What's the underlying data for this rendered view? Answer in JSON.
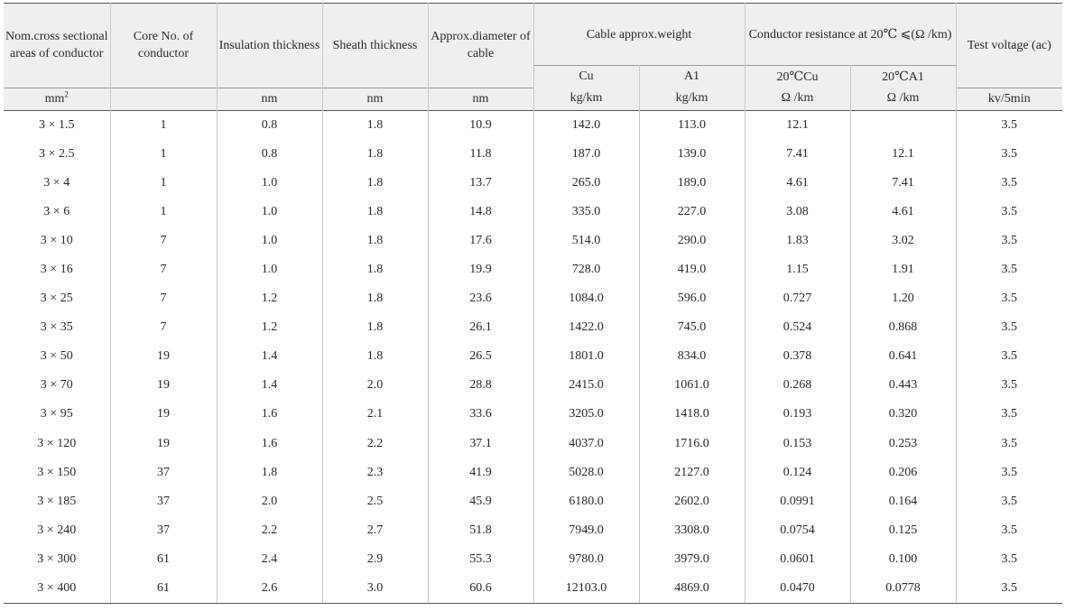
{
  "headers": {
    "area": "Nom.cross sectional areas of conductor",
    "cores": "Core No. of conductor",
    "insulation": "Insulation thickness",
    "sheath": "Sheath thickness",
    "diameter": "Approx.diameter of cable",
    "weight": "Cable approx.weight",
    "weight_cu": "Cu",
    "weight_al": "A1",
    "resistance": "Conductor resistance at 20℃ ⩽(Ω /km)",
    "res_cu": "20℃Cu",
    "res_al": "20℃A1",
    "voltage": "Test voltage (ac)"
  },
  "units": {
    "area": "mm",
    "area_sup": "2",
    "cores": "",
    "insulation": "nm",
    "sheath": "nm",
    "diameter": "nm",
    "weight_cu": "kg/km",
    "weight_al": "kg/km",
    "res_cu": "Ω /km",
    "res_al": "Ω /km",
    "voltage": "kv/5min"
  },
  "rows": [
    [
      "3 × 1.5",
      "1",
      "0.8",
      "1.8",
      "10.9",
      "142.0",
      "113.0",
      "12.1",
      "",
      "3.5"
    ],
    [
      "3 × 2.5",
      "1",
      "0.8",
      "1.8",
      "11.8",
      "187.0",
      "139.0",
      "7.41",
      "12.1",
      "3.5"
    ],
    [
      "3 × 4",
      "1",
      "1.0",
      "1.8",
      "13.7",
      "265.0",
      "189.0",
      "4.61",
      "7.41",
      "3.5"
    ],
    [
      "3 × 6",
      "1",
      "1.0",
      "1.8",
      "14.8",
      "335.0",
      "227.0",
      "3.08",
      "4.61",
      "3.5"
    ],
    [
      "3 × 10",
      "7",
      "1.0",
      "1.8",
      "17.6",
      "514.0",
      "290.0",
      "1.83",
      "3.02",
      "3.5"
    ],
    [
      "3 × 16",
      "7",
      "1.0",
      "1.8",
      "19.9",
      "728.0",
      "419.0",
      "1.15",
      "1.91",
      "3.5"
    ],
    [
      "3 × 25",
      "7",
      "1.2",
      "1.8",
      "23.6",
      "1084.0",
      "596.0",
      "0.727",
      "1.20",
      "3.5"
    ],
    [
      "3 × 35",
      "7",
      "1.2",
      "1.8",
      "26.1",
      "1422.0",
      "745.0",
      "0.524",
      "0.868",
      "3.5"
    ],
    [
      "3 × 50",
      "19",
      "1.4",
      "1.8",
      "26.5",
      "1801.0",
      "834.0",
      "0.378",
      "0.641",
      "3.5"
    ],
    [
      "3 × 70",
      "19",
      "1.4",
      "2.0",
      "28.8",
      "2415.0",
      "1061.0",
      "0.268",
      "0.443",
      "3.5"
    ],
    [
      "3 × 95",
      "19",
      "1.6",
      "2.1",
      "33.6",
      "3205.0",
      "1418.0",
      "0.193",
      "0.320",
      "3.5"
    ],
    [
      "3 × 120",
      "19",
      "1.6",
      "2.2",
      "37.1",
      "4037.0",
      "1716.0",
      "0.153",
      "0.253",
      "3.5"
    ],
    [
      "3 × 150",
      "37",
      "1.8",
      "2.3",
      "41.9",
      "5028.0",
      "2127.0",
      "0.124",
      "0.206",
      "3.5"
    ],
    [
      "3 × 185",
      "37",
      "2.0",
      "2.5",
      "45.9",
      "6180.0",
      "2602.0",
      "0.0991",
      "0.164",
      "3.5"
    ],
    [
      "3 × 240",
      "37",
      "2.2",
      "2.7",
      "51.8",
      "7949.0",
      "3308.0",
      "0.0754",
      "0.125",
      "3.5"
    ],
    [
      "3 × 300",
      "61",
      "2.4",
      "2.9",
      "55.3",
      "9780.0",
      "3979.0",
      "0.0601",
      "0.100",
      "3.5"
    ],
    [
      "3 × 400",
      "61",
      "2.6",
      "3.0",
      "60.6",
      "12103.0",
      "4869.0",
      "0.0470",
      "0.0778",
      "3.5"
    ]
  ]
}
